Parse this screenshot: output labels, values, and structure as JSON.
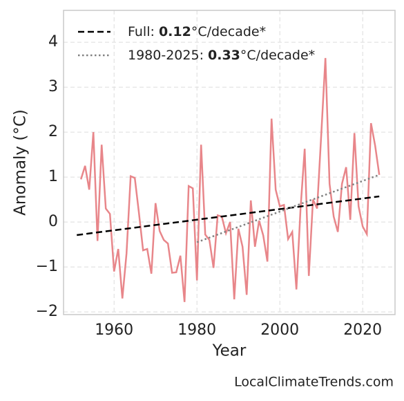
{
  "chart_data": {
    "type": "line",
    "xlabel": "Year",
    "ylabel": "Anomaly (°C)",
    "credit": "LocalClimateTrends.com",
    "x": [
      1952,
      1953,
      1954,
      1955,
      1956,
      1957,
      1958,
      1959,
      1960,
      1961,
      1962,
      1963,
      1964,
      1965,
      1966,
      1967,
      1968,
      1969,
      1970,
      1971,
      1972,
      1973,
      1974,
      1975,
      1976,
      1977,
      1978,
      1979,
      1980,
      1981,
      1982,
      1983,
      1984,
      1985,
      1986,
      1987,
      1988,
      1989,
      1990,
      1991,
      1992,
      1993,
      1994,
      1995,
      1996,
      1997,
      1998,
      1999,
      2000,
      2001,
      2002,
      2003,
      2004,
      2005,
      2006,
      2007,
      2008,
      2009,
      2010,
      2011,
      2012,
      2013,
      2014,
      2015,
      2016,
      2017,
      2018,
      2019,
      2020,
      2021,
      2022,
      2023,
      2024
    ],
    "series": [
      {
        "color": "#e8868a",
        "style": "solid",
        "values": [
          0.95,
          1.25,
          0.72,
          2.0,
          -0.42,
          1.72,
          0.3,
          0.18,
          -1.1,
          -0.6,
          -1.7,
          -0.7,
          1.02,
          0.98,
          0.2,
          -0.63,
          -0.6,
          -1.15,
          0.42,
          -0.2,
          -0.4,
          -0.48,
          -1.13,
          -1.12,
          -0.75,
          -1.78,
          0.8,
          0.75,
          -1.3,
          1.72,
          -0.28,
          -0.4,
          -1.02,
          0.15,
          0.12,
          -0.25,
          0,
          -1.72,
          -0.15,
          -0.55,
          -1.62,
          0.48,
          -0.55,
          0.03,
          -0.3,
          -0.88,
          2.3,
          0.72,
          0.35,
          0.38,
          -0.38,
          -0.22,
          -1.5,
          0.3,
          1.63,
          -1.2,
          0.5,
          0.3,
          1.95,
          3.65,
          0.85,
          0.12,
          -0.22,
          0.85,
          1.22,
          0.05,
          1.98,
          0.35,
          -0.1,
          -0.27,
          2.2,
          1.7,
          1.05
        ]
      },
      {
        "name_parts": [
          "Full: ",
          "0.12",
          "°C/decade*"
        ],
        "color": "#000000",
        "style": "dashed",
        "x": [
          1951,
          2024
        ],
        "values": [
          -0.29,
          0.57
        ]
      },
      {
        "name_parts": [
          "1980-2025: ",
          "0.33",
          "°C/decade*"
        ],
        "color": "#808080",
        "style": "dotted",
        "x": [
          1980,
          2024
        ],
        "values": [
          -0.45,
          1.05
        ]
      }
    ],
    "xlim": [
      1947.8,
      2027.8
    ],
    "xticks": [
      1960,
      1980,
      2000,
      2020
    ],
    "ylim": [
      -2.06,
      4.71
    ],
    "yticks": [
      {
        "value": -2,
        "label": "−2"
      },
      {
        "value": -1,
        "label": "−1"
      },
      0,
      1,
      2,
      3,
      4
    ],
    "grid": true,
    "legend": "upper left"
  }
}
